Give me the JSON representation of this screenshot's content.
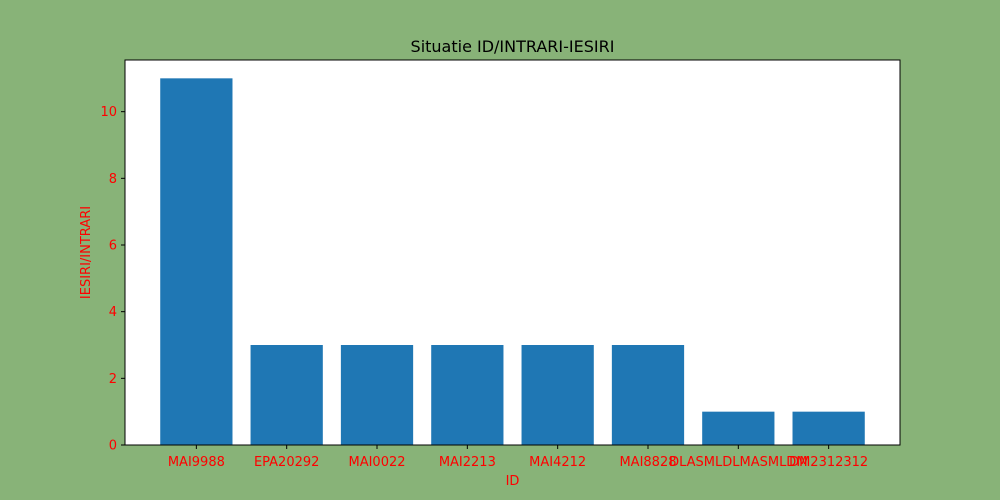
{
  "figure": {
    "background": "#88b378"
  },
  "chart_data": {
    "type": "bar",
    "title": "Situatie ID/INTRARI-IESIRI",
    "xlabel": "ID",
    "ylabel": "IESIRI/INTRARI",
    "categories": [
      "MAI9988",
      "EPA20292",
      "MAI0022",
      "MAI2213",
      "MAI4212",
      "MAI8828",
      "DLASMLDLMASMLDM",
      "DM2312312"
    ],
    "values": [
      11,
      3,
      3,
      3,
      3,
      3,
      1,
      1
    ],
    "ylim": [
      0,
      11.55
    ],
    "yticks": [
      0,
      2,
      4,
      6,
      8,
      10
    ],
    "bar_color": "#1f77b4",
    "tick_label_color": "#ff0000",
    "axis_label_color": "#ff0000",
    "grid": false,
    "legend": "none"
  }
}
